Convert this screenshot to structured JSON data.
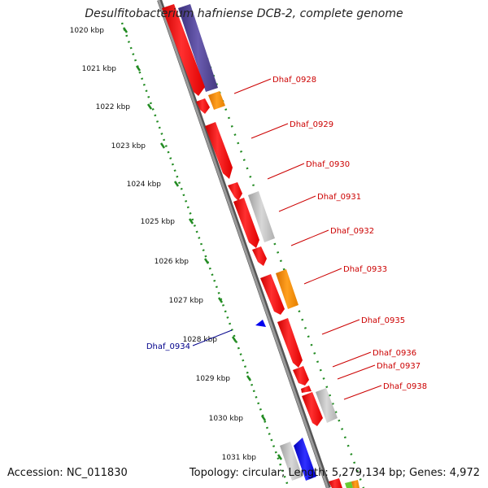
{
  "title": "Desulfitobacterium hafniense DCB-2, complete genome",
  "accession": "Accession: NC_011830",
  "summary": "Topology: circular; Length: 5,279,134 bp; Genes: 4,972",
  "colors": {
    "backbone": "#8a8a8a",
    "forward_gene": "#ff0000",
    "other_gene": "#ff8c00",
    "grey_gene": "#bcbcbc",
    "purple_gene": "#4b3f8f",
    "blue_gene": "#0000ee",
    "tick_marks": "#228b22",
    "gene_label": "#cc0000",
    "blue_label": "#00008b"
  },
  "ruler": [
    {
      "label": "1020 kbp"
    },
    {
      "label": "1021 kbp"
    },
    {
      "label": "1022 kbp"
    },
    {
      "label": "1023 kbp"
    },
    {
      "label": "1024 kbp"
    },
    {
      "label": "1025 kbp"
    },
    {
      "label": "1026 kbp"
    },
    {
      "label": "1027 kbp"
    },
    {
      "label": "1028 kbp"
    },
    {
      "label": "1029 kbp"
    },
    {
      "label": "1030 kbp"
    },
    {
      "label": "1031 kbp"
    }
  ],
  "gene_labels": [
    {
      "text": "Dhaf_0928",
      "color": "red"
    },
    {
      "text": "Dhaf_0929",
      "color": "red"
    },
    {
      "text": "Dhaf_0930",
      "color": "red"
    },
    {
      "text": "Dhaf_0931",
      "color": "red"
    },
    {
      "text": "Dhaf_0932",
      "color": "red"
    },
    {
      "text": "Dhaf_0933",
      "color": "red"
    },
    {
      "text": "Dhaf_0935",
      "color": "red"
    },
    {
      "text": "Dhaf_0936",
      "color": "red"
    },
    {
      "text": "Dhaf_0937",
      "color": "red"
    },
    {
      "text": "Dhaf_0938",
      "color": "red"
    },
    {
      "text": "Dhaf_0934",
      "color": "blue"
    }
  ]
}
